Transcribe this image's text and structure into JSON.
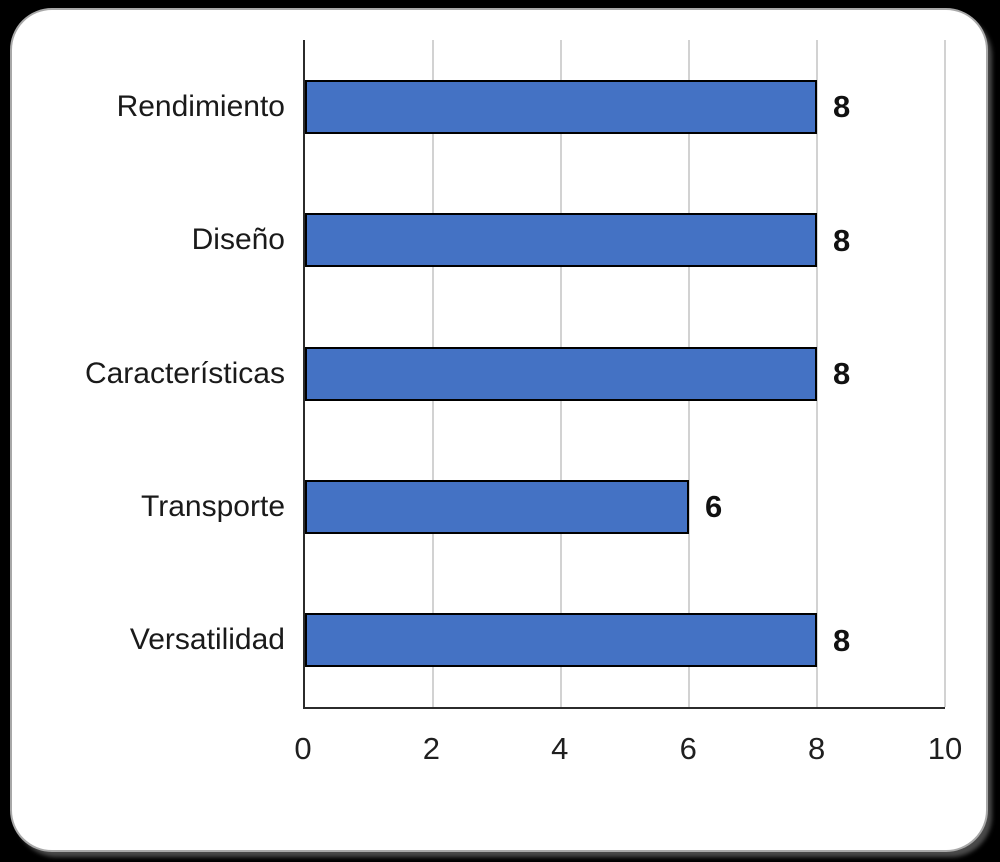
{
  "chart_data": {
    "type": "bar",
    "orientation": "horizontal",
    "title": "",
    "xlabel": "",
    "ylabel": "",
    "categories": [
      "Rendimiento",
      "Diseño",
      "Características",
      "Transporte",
      "Versatilidad"
    ],
    "values": [
      8,
      8,
      8,
      6,
      8
    ],
    "data_labels": [
      "8",
      "8",
      "8",
      "6",
      "8"
    ],
    "x_ticks": [
      "0",
      "2",
      "4",
      "6",
      "8",
      "10"
    ],
    "x_tick_values": [
      0,
      2,
      4,
      6,
      8,
      10
    ],
    "xlim": [
      0,
      10
    ],
    "grid": true,
    "legend": false,
    "colors": {
      "bar_fill": "#4472C4",
      "bar_border": "#000000",
      "gridline": "#D2D2D2",
      "axis_line": "#2B2B2B",
      "label_text": "#1A1A1A",
      "panel_background": "#FFFFFF",
      "panel_border": "#A8A8A8",
      "page_background": "#000000"
    }
  }
}
